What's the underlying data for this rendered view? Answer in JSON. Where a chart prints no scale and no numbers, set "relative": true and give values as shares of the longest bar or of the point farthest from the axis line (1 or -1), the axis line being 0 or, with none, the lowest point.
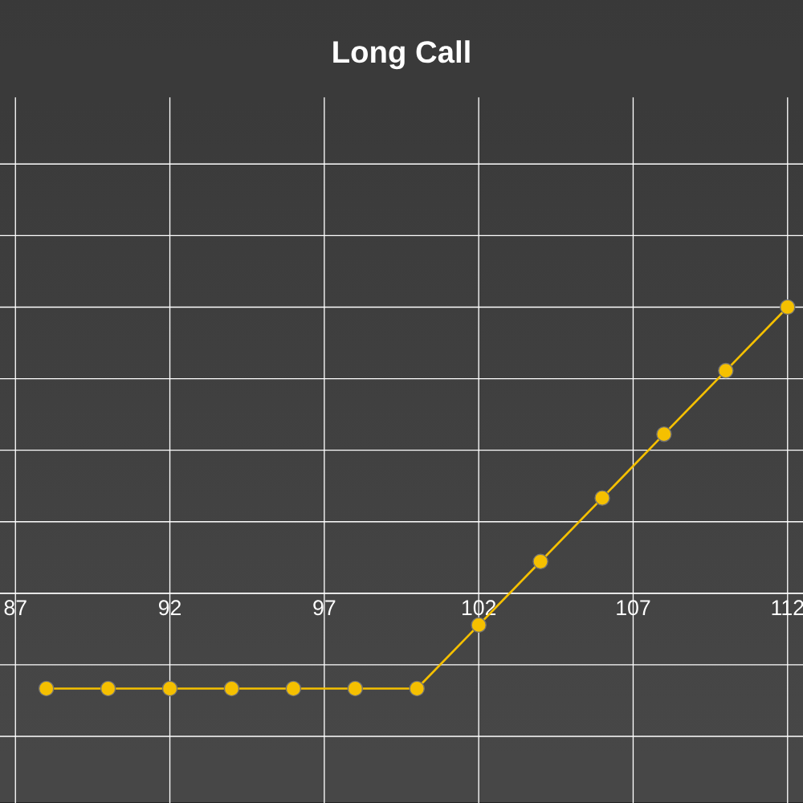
{
  "chart_data": {
    "type": "line",
    "title": "Long Call",
    "x": [
      88,
      90,
      92,
      94,
      96,
      98,
      100,
      102,
      104,
      106,
      108,
      110,
      112
    ],
    "values": [
      -0.333,
      -0.333,
      -0.333,
      -0.333,
      -0.333,
      -0.333,
      -0.333,
      -0.111,
      0.111,
      0.333,
      0.556,
      0.778,
      1
    ],
    "color": "#f5c000",
    "relative": true,
    "xlim": [
      86.5,
      112.5
    ],
    "xticks": [
      87,
      92,
      97,
      102,
      107,
      112
    ],
    "grid": true,
    "marker": "circle",
    "line_style": "solid",
    "tick_labels": "x"
  }
}
